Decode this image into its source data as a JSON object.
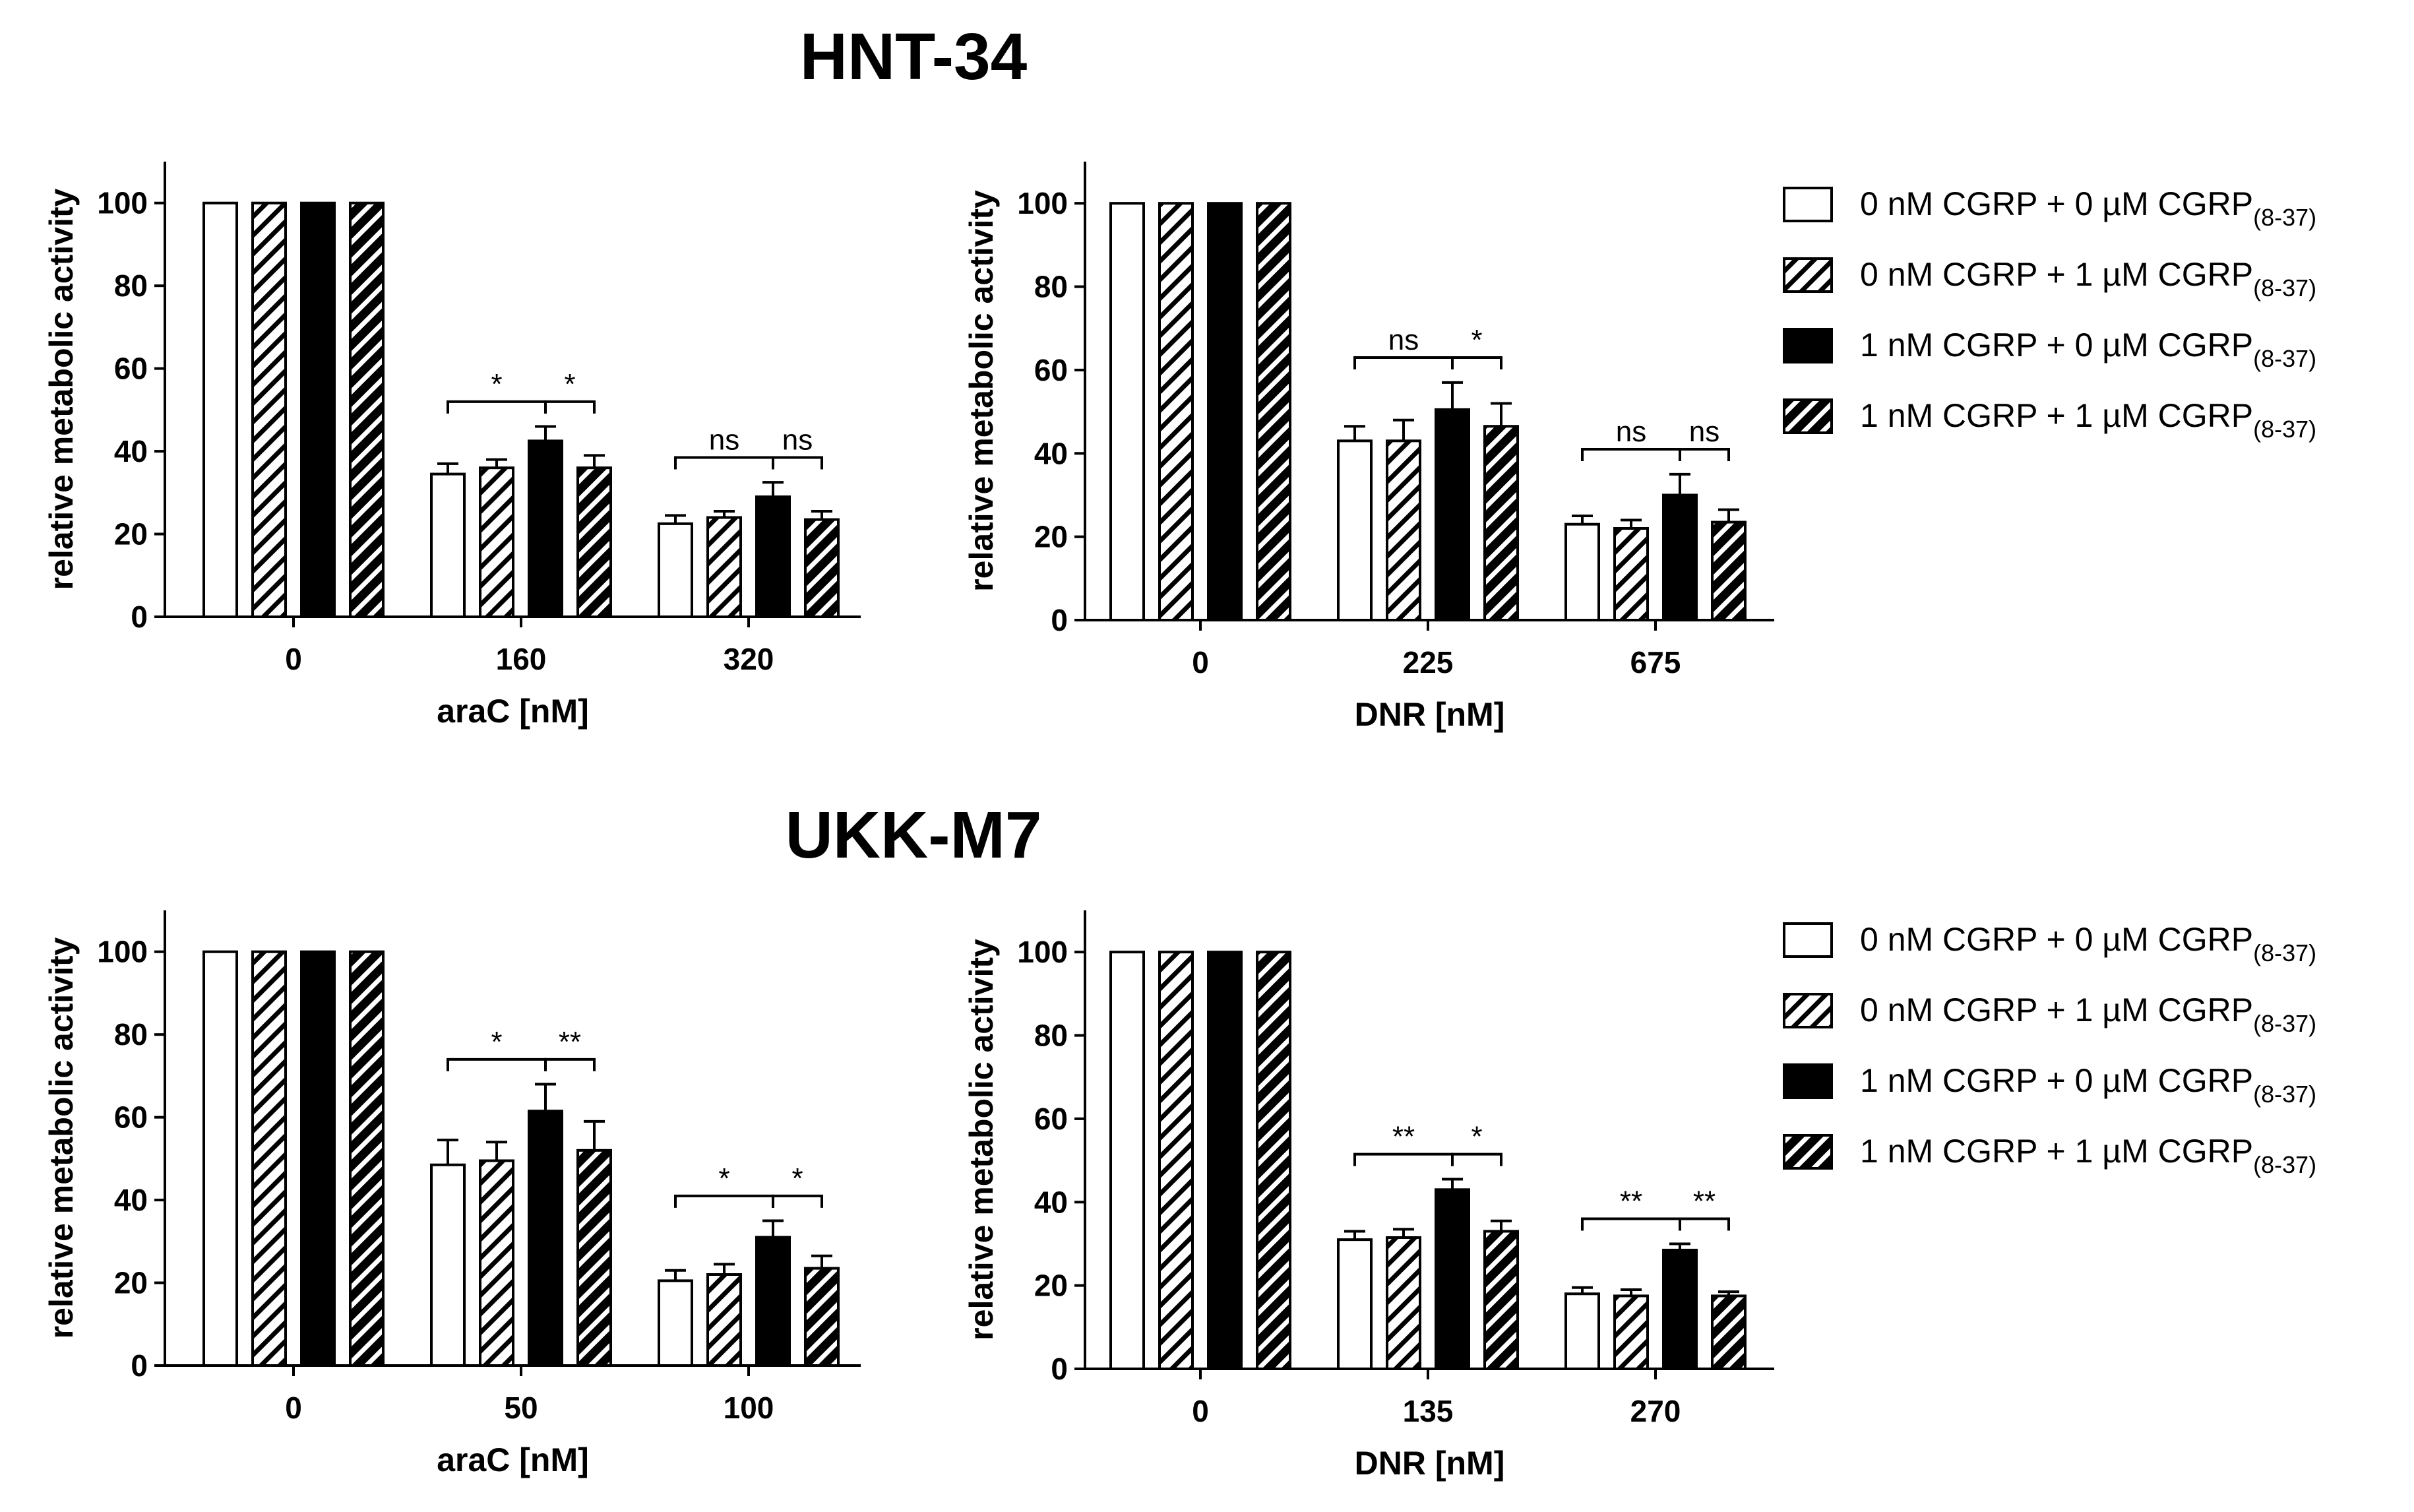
{
  "figure": {
    "titles": [
      "HNT-34",
      "UKK-M7"
    ],
    "legend": [
      {
        "text": "0 nM CGRP + 0 µM CGRP",
        "sub": "(8-37)",
        "fill": "white"
      },
      {
        "text": "0 nM CGRP + 1 µM CGRP",
        "sub": "(8-37)",
        "fill": "hatch-light"
      },
      {
        "text": "1 nM CGRP + 0 µM CGRP",
        "sub": "(8-37)",
        "fill": "black"
      },
      {
        "text": "1 nM CGRP + 1 µM CGRP",
        "sub": "(8-37)",
        "fill": "hatch-dense"
      }
    ],
    "colors": {
      "bar_edge": "#000000",
      "solid": "#000000",
      "empty": "#ffffff"
    }
  },
  "chart_data": [
    {
      "type": "bar",
      "panel": "HNT-34 araC",
      "xlabel": "araC [nM]",
      "ylabel": "relative metabolic activity",
      "ylim": [
        0,
        110
      ],
      "yticks": [
        0,
        20,
        40,
        60,
        80,
        100
      ],
      "categories": [
        "0",
        "160",
        "320"
      ],
      "series": [
        {
          "values": [
            100,
            34.5,
            22.5
          ],
          "errors": [
            0,
            2.5,
            2
          ]
        },
        {
          "values": [
            100,
            36,
            24
          ],
          "errors": [
            0,
            2,
            1.5
          ]
        },
        {
          "values": [
            100,
            42.5,
            29
          ],
          "errors": [
            0,
            3.5,
            3.5
          ]
        },
        {
          "values": [
            100,
            36,
            23.5
          ],
          "errors": [
            0,
            3,
            2
          ]
        }
      ],
      "significance": [
        {
          "group": 1,
          "from": 0,
          "to": 2,
          "label": "*"
        },
        {
          "group": 1,
          "from": 2,
          "to": 3,
          "label": "*"
        },
        {
          "group": 2,
          "from": 0,
          "to": 2,
          "label": "ns"
        },
        {
          "group": 2,
          "from": 2,
          "to": 3,
          "label": "ns"
        }
      ]
    },
    {
      "type": "bar",
      "panel": "HNT-34 DNR",
      "xlabel": "DNR [nM]",
      "ylabel": "relative metabolic activity",
      "ylim": [
        0,
        110
      ],
      "yticks": [
        0,
        20,
        40,
        60,
        80,
        100
      ],
      "categories": [
        "0",
        "225",
        "675"
      ],
      "series": [
        {
          "values": [
            100,
            43,
            23
          ],
          "errors": [
            0,
            3.5,
            2
          ]
        },
        {
          "values": [
            100,
            43,
            22
          ],
          "errors": [
            0,
            5,
            2
          ]
        },
        {
          "values": [
            100,
            50.5,
            30
          ],
          "errors": [
            0,
            6.5,
            5
          ]
        },
        {
          "values": [
            100,
            46.5,
            23.5
          ],
          "errors": [
            0,
            5.5,
            3
          ]
        }
      ],
      "significance": [
        {
          "group": 1,
          "from": 0,
          "to": 2,
          "label": "ns"
        },
        {
          "group": 1,
          "from": 2,
          "to": 3,
          "label": "*"
        },
        {
          "group": 2,
          "from": 0,
          "to": 2,
          "label": "ns"
        },
        {
          "group": 2,
          "from": 2,
          "to": 3,
          "label": "ns"
        }
      ]
    },
    {
      "type": "bar",
      "panel": "UKK-M7 araC",
      "xlabel": "araC [nM]",
      "ylabel": "relative metabolic activity",
      "ylim": [
        0,
        110
      ],
      "yticks": [
        0,
        20,
        40,
        60,
        80,
        100
      ],
      "categories": [
        "0",
        "50",
        "100"
      ],
      "series": [
        {
          "values": [
            100,
            48.5,
            20.5
          ],
          "errors": [
            0,
            6,
            2.5
          ]
        },
        {
          "values": [
            100,
            49.5,
            22
          ],
          "errors": [
            0,
            4.5,
            2.5
          ]
        },
        {
          "values": [
            100,
            61.5,
            31
          ],
          "errors": [
            0,
            6.5,
            4
          ]
        },
        {
          "values": [
            100,
            52,
            23.5
          ],
          "errors": [
            0,
            7,
            3
          ]
        }
      ],
      "significance": [
        {
          "group": 1,
          "from": 0,
          "to": 2,
          "label": "*"
        },
        {
          "group": 1,
          "from": 2,
          "to": 3,
          "label": "**"
        },
        {
          "group": 2,
          "from": 0,
          "to": 2,
          "label": "*"
        },
        {
          "group": 2,
          "from": 2,
          "to": 3,
          "label": "*"
        }
      ]
    },
    {
      "type": "bar",
      "panel": "UKK-M7 DNR",
      "xlabel": "DNR [nM]",
      "ylabel": "relative metabolic activity",
      "ylim": [
        0,
        110
      ],
      "yticks": [
        0,
        20,
        40,
        60,
        80,
        100
      ],
      "categories": [
        "0",
        "135",
        "270"
      ],
      "series": [
        {
          "values": [
            100,
            31,
            18
          ],
          "errors": [
            0,
            2,
            1.5
          ]
        },
        {
          "values": [
            100,
            31.5,
            17.5
          ],
          "errors": [
            0,
            2,
            1.5
          ]
        },
        {
          "values": [
            100,
            43,
            28.5
          ],
          "errors": [
            0,
            2.5,
            1.5
          ]
        },
        {
          "values": [
            100,
            33,
            17.5
          ],
          "errors": [
            0,
            2.5,
            1
          ]
        }
      ],
      "significance": [
        {
          "group": 1,
          "from": 0,
          "to": 2,
          "label": "**"
        },
        {
          "group": 1,
          "from": 2,
          "to": 3,
          "label": "*"
        },
        {
          "group": 2,
          "from": 0,
          "to": 2,
          "label": "**"
        },
        {
          "group": 2,
          "from": 2,
          "to": 3,
          "label": "**"
        }
      ]
    }
  ]
}
